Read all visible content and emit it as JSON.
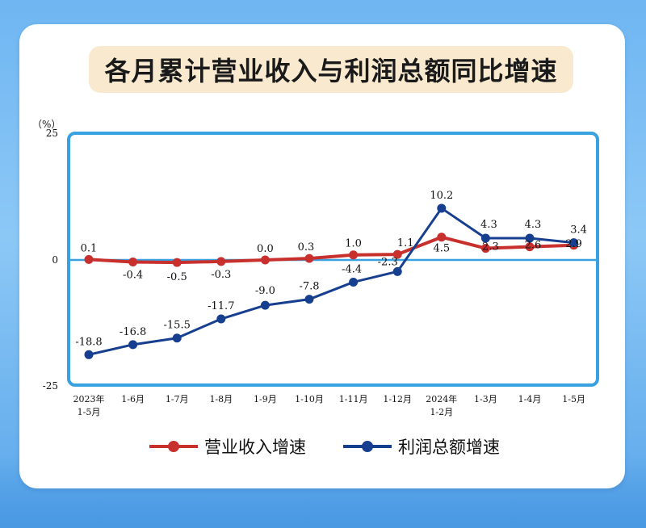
{
  "title": "各月累计营业收入与利润总额同比增速",
  "colors": {
    "revenue": "#c8302e",
    "profit": "#173f8f",
    "frame": "#3aa1e0"
  },
  "chart_data": {
    "type": "line",
    "unit": "（%）",
    "ylim": [
      -25,
      25
    ],
    "yticks": [
      "25",
      "0",
      "-25"
    ],
    "categories": [
      [
        "2023年",
        "1-5月"
      ],
      [
        "1-6月"
      ],
      [
        "1-7月"
      ],
      [
        "1-8月"
      ],
      [
        "1-9月"
      ],
      [
        "1-10月"
      ],
      [
        "1-11月"
      ],
      [
        "1-12月"
      ],
      [
        "2024年",
        "1-2月"
      ],
      [
        "1-3月"
      ],
      [
        "1-4月"
      ],
      [
        "1-5月"
      ]
    ],
    "series": [
      {
        "name": "营业收入增速",
        "color": "#c8302e",
        "values": [
          0.1,
          -0.4,
          -0.5,
          -0.3,
          0.0,
          0.3,
          1.0,
          1.1,
          4.5,
          2.3,
          2.6,
          2.9
        ],
        "labels": [
          "0.1",
          "-0.4",
          "-0.5",
          "-0.3",
          "0.0",
          "0.3",
          "1.0",
          "1.1",
          "4.5",
          "2.3",
          "2.6",
          "2.9"
        ]
      },
      {
        "name": "利润总额增速",
        "color": "#173f8f",
        "values": [
          -18.8,
          -16.8,
          -15.5,
          -11.7,
          -9.0,
          -7.8,
          -4.4,
          -2.3,
          10.2,
          4.3,
          4.3,
          3.4
        ],
        "labels": [
          "-18.8",
          "-16.8",
          "-15.5",
          "-11.7",
          "-9.0",
          "-7.8",
          "-4.4",
          "-2.3",
          "10.2",
          "4.3",
          "4.3",
          "3.4"
        ]
      }
    ],
    "legend": "bottom"
  }
}
